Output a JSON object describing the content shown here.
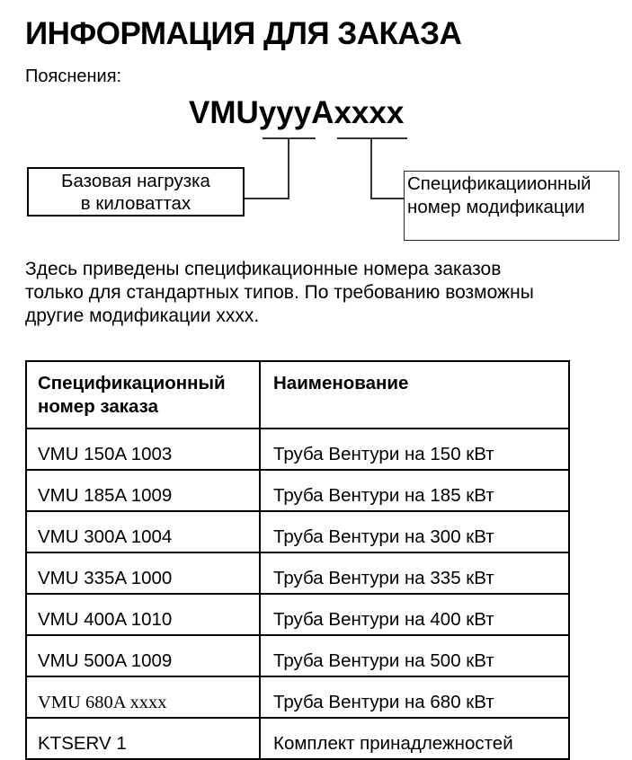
{
  "page": {
    "title": "ИНФОРМАЦИЯ ДЛЯ ЗАКАЗА",
    "explanations_label": "Пояснения:"
  },
  "colors": {
    "text": "#000000",
    "background": "#ffffff",
    "table_border": "#000000"
  },
  "diagram": {
    "model_code": "VMUyyyAxxxx",
    "left_callout": {
      "line1": "Базовая нагрузка",
      "line2": "в киловаттах"
    },
    "right_callout": {
      "line1": "Спецификациионный",
      "line2": "номер модификации"
    }
  },
  "paragraph": {
    "lines": [
      "Здесь приведены спецификационные номера заказов",
      "только для стандартных типов. По требованию возможны",
      "другие модификации xxxx."
    ]
  },
  "table": {
    "header": {
      "col1_line1": "Спецификационный",
      "col1_line2": "номер заказа",
      "col2": "Наименование"
    },
    "rows": [
      {
        "order": "VMU 150A 1003",
        "name": "Труба Вентури на 150 кВт"
      },
      {
        "order": "VMU 185A 1009",
        "name": "Труба Вентури на 185 кВт"
      },
      {
        "order": "VMU 300A 1004",
        "name": "Труба Вентури на 300 кВт"
      },
      {
        "order": "VMU 335A 1000",
        "name": "Труба Вентури на 335 кВт"
      },
      {
        "order": "VMU 400A 1010",
        "name": "Труба Вентури на 400 кВт"
      },
      {
        "order": "VMU 500A 1009",
        "name": "Труба Вентури на 500 кВт"
      },
      {
        "order": "VMU 680A xxxx",
        "name": "Труба Вентури на 680 кВт"
      },
      {
        "order": "KTSERV 1",
        "name": "Комплект принадлежностей"
      }
    ]
  }
}
